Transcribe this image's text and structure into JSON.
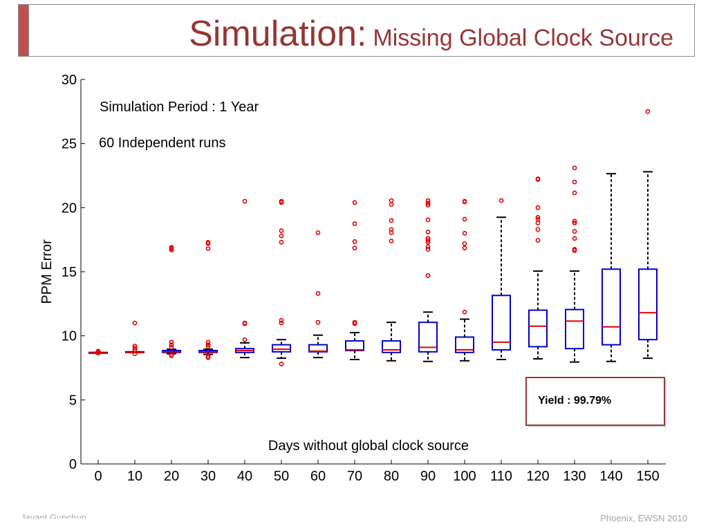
{
  "slide": {
    "title_main": "Simulation:",
    "title_sub": "Missing Global Clock Source",
    "footer_left": "Jayant Gupchup",
    "footer_right": "Phoenix, EWSN 2010",
    "accent_color": "#c0504d",
    "title_color": "#953735"
  },
  "chart_data": {
    "type": "boxplot",
    "xlabel": "Days without global clock source",
    "ylabel": "PPM Error",
    "ylim": [
      0,
      30
    ],
    "yticks": [
      0,
      5,
      10,
      15,
      20,
      25,
      30
    ],
    "grid": false,
    "categories": [
      "0",
      "10",
      "20",
      "30",
      "40",
      "50",
      "60",
      "70",
      "80",
      "90",
      "100",
      "110",
      "120",
      "130",
      "140",
      "150"
    ],
    "annotations": [
      "Simulation Period : 1 Year",
      "60 Independent runs"
    ],
    "yield_label": "Yield : 99.79%",
    "box_color": "#0000cc",
    "median_color": "#e00000",
    "outlier_color": "#e00000",
    "boxes": [
      {
        "x": 0,
        "whisker_low": 8.7,
        "q1": 8.7,
        "median": 8.7,
        "q3": 8.7,
        "whisker_high": 8.7,
        "outliers": [
          8.8,
          8.75,
          8.65
        ]
      },
      {
        "x": 10,
        "whisker_low": 8.7,
        "q1": 8.7,
        "median": 8.7,
        "q3": 8.75,
        "whisker_high": 8.75,
        "outliers": [
          11.0,
          9.2,
          9.05,
          8.9,
          8.6
        ]
      },
      {
        "x": 20,
        "whisker_low": 8.6,
        "q1": 8.7,
        "median": 8.75,
        "q3": 8.85,
        "whisker_high": 8.95,
        "outliers": [
          16.9,
          16.8,
          16.7,
          9.5,
          9.3,
          9.1,
          8.5,
          8.45
        ]
      },
      {
        "x": 30,
        "whisker_low": 8.55,
        "q1": 8.7,
        "median": 8.75,
        "q3": 8.85,
        "whisker_high": 8.95,
        "outliers": [
          17.3,
          17.2,
          16.8,
          9.5,
          9.3,
          9.15,
          8.4,
          8.3
        ]
      },
      {
        "x": 40,
        "whisker_low": 8.3,
        "q1": 8.7,
        "median": 8.85,
        "q3": 9.0,
        "whisker_high": 9.45,
        "outliers": [
          20.5,
          11.0,
          10.95,
          9.7
        ]
      },
      {
        "x": 50,
        "whisker_low": 8.25,
        "q1": 8.75,
        "median": 8.95,
        "q3": 9.3,
        "whisker_high": 9.7,
        "outliers": [
          20.5,
          20.4,
          18.2,
          17.8,
          17.3,
          11.2,
          11.0,
          7.8
        ]
      },
      {
        "x": 60,
        "whisker_low": 8.3,
        "q1": 8.75,
        "median": 8.8,
        "q3": 9.3,
        "whisker_high": 10.05,
        "outliers": [
          18.05,
          13.3,
          11.05
        ]
      },
      {
        "x": 70,
        "whisker_low": 8.15,
        "q1": 8.85,
        "median": 8.9,
        "q3": 9.6,
        "whisker_high": 10.25,
        "outliers": [
          20.4,
          18.75,
          17.35,
          16.85,
          11.05,
          10.95
        ]
      },
      {
        "x": 80,
        "whisker_low": 8.05,
        "q1": 8.7,
        "median": 8.9,
        "q3": 9.6,
        "whisker_high": 11.05,
        "outliers": [
          20.55,
          20.25,
          19.0,
          18.3,
          18.05,
          17.4
        ]
      },
      {
        "x": 90,
        "whisker_low": 8.0,
        "q1": 8.75,
        "median": 9.1,
        "q3": 11.05,
        "whisker_high": 11.85,
        "outliers": [
          20.55,
          20.35,
          20.2,
          19.05,
          18.1,
          17.6,
          17.45,
          17.3,
          16.95,
          16.75,
          14.7
        ]
      },
      {
        "x": 100,
        "whisker_low": 8.05,
        "q1": 8.7,
        "median": 8.9,
        "q3": 9.9,
        "whisker_high": 11.3,
        "outliers": [
          20.5,
          20.45,
          19.1,
          18.0,
          17.2,
          16.85,
          11.85
        ]
      },
      {
        "x": 110,
        "whisker_low": 8.15,
        "q1": 8.9,
        "median": 9.5,
        "q3": 13.15,
        "whisker_high": 19.25,
        "outliers": [
          20.55
        ]
      },
      {
        "x": 120,
        "whisker_low": 8.2,
        "q1": 9.15,
        "median": 10.75,
        "q3": 12.0,
        "whisker_high": 15.05,
        "outliers": [
          22.25,
          22.2,
          20.0,
          19.25,
          19.1,
          18.8,
          18.3,
          17.45
        ]
      },
      {
        "x": 130,
        "whisker_low": 7.95,
        "q1": 9.0,
        "median": 11.15,
        "q3": 12.05,
        "whisker_high": 15.05,
        "outliers": [
          23.1,
          22.0,
          21.15,
          18.95,
          18.8,
          18.15,
          17.6,
          16.75,
          16.65
        ]
      },
      {
        "x": 140,
        "whisker_low": 8.0,
        "q1": 9.3,
        "median": 10.7,
        "q3": 15.2,
        "whisker_high": 22.65,
        "outliers": []
      },
      {
        "x": 150,
        "whisker_low": 8.25,
        "q1": 9.7,
        "median": 11.8,
        "q3": 15.2,
        "whisker_high": 22.8,
        "outliers": [
          27.5
        ]
      }
    ]
  }
}
